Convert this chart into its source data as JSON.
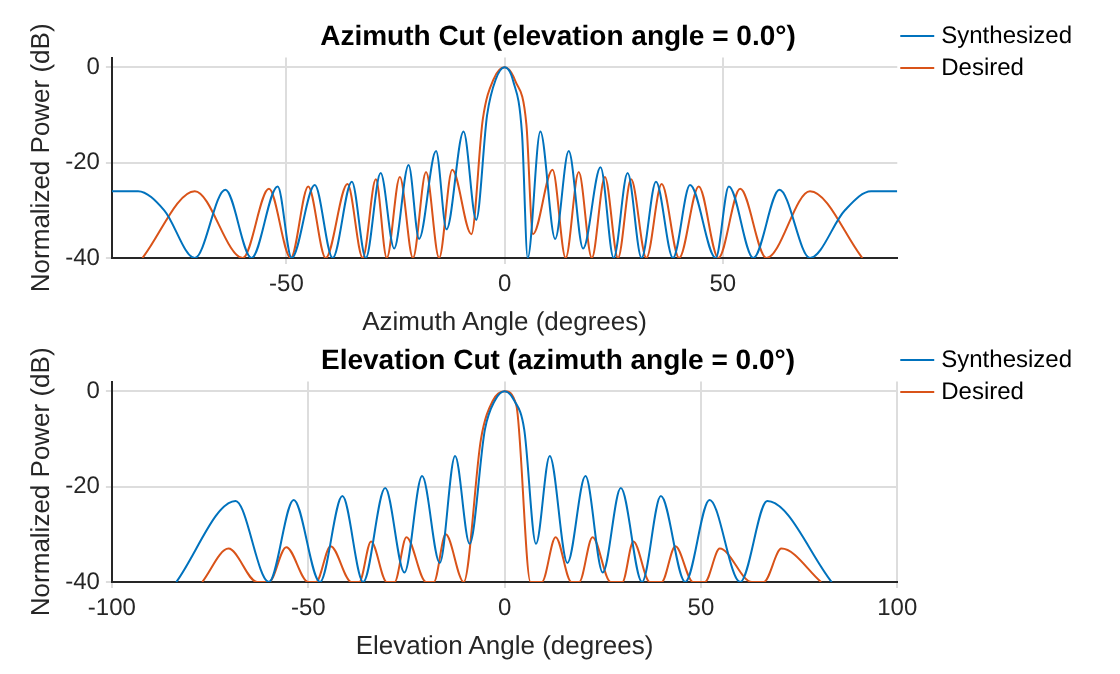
{
  "chart_data": [
    {
      "type": "line",
      "title": "Azimuth Cut (elevation angle = 0.0°)",
      "xlabel": "Azimuth Angle (degrees)",
      "ylabel": "Normalized Power (dB)",
      "xlim": [
        -90,
        90
      ],
      "xticks": [
        -50,
        0,
        50
      ],
      "ylim": [
        -40,
        2
      ],
      "yticks": [
        -40,
        -20,
        0
      ],
      "grid": true,
      "legend": "top right",
      "series": [
        {
          "name": "Synthesized",
          "color": "#0072bd",
          "x": [
            -90,
            -84,
            -78,
            -71,
            -64,
            -58,
            -52,
            -48.8,
            -43.5,
            -39.4,
            -35,
            -31.8,
            -28.4,
            -25.3,
            -22,
            -19.6,
            -15.7,
            -13.3,
            -9.4,
            -6.5,
            -4,
            -2,
            0,
            2,
            4,
            5.3,
            8.2,
            11.6,
            14.7,
            18,
            22,
            25,
            28.2,
            31.4,
            34.7,
            38.6,
            42.5,
            48.4,
            51.4,
            57,
            63,
            70,
            78,
            84,
            90
          ],
          "values": [
            -26,
            -26,
            -30,
            -40,
            -25.7,
            -40,
            -25,
            -40,
            -24.7,
            -40,
            -24,
            -40,
            -22.2,
            -38,
            -20.5,
            -36,
            -17.6,
            -34,
            -13.5,
            -32,
            -10,
            -2.5,
            0,
            -3,
            -14,
            -40,
            -13.5,
            -36,
            -17.6,
            -38,
            -21,
            -40,
            -22.2,
            -40,
            -24,
            -40,
            -24.7,
            -40,
            -25,
            -40,
            -25.7,
            -40,
            -30,
            -26,
            -26
          ]
        },
        {
          "name": "Desired",
          "color": "#d95319",
          "x": [
            -83,
            -71,
            -60,
            -54,
            -49,
            -45,
            -41,
            -36,
            -32.5,
            -29.5,
            -27,
            -24,
            -21,
            -18,
            -15,
            -12,
            -7.6,
            -5,
            -2.5,
            0,
            2.5,
            5,
            6.5,
            11,
            14,
            17,
            20,
            23,
            26,
            29,
            32.5,
            36,
            40,
            44.5,
            49,
            54,
            60,
            70,
            82
          ],
          "values": [
            -40,
            -26,
            -40,
            -25.5,
            -40,
            -25,
            -40,
            -24.5,
            -40,
            -23.5,
            -40,
            -23,
            -40,
            -22,
            -40,
            -21.5,
            -35,
            -11,
            -2.5,
            0,
            -3,
            -12,
            -35,
            -21.5,
            -40,
            -22,
            -40,
            -23,
            -40,
            -23.5,
            -40,
            -24.5,
            -40,
            -25,
            -40,
            -25.5,
            -40,
            -26,
            -40
          ]
        }
      ]
    },
    {
      "type": "line",
      "title": "Elevation Cut (azimuth angle = 0.0°)",
      "xlabel": "Elevation Angle (degrees)",
      "ylabel": "Normalized Power (dB)",
      "xlim": [
        -100,
        100
      ],
      "xticks": [
        -100,
        -50,
        0,
        50,
        100
      ],
      "ylim": [
        -40,
        2
      ],
      "yticks": [
        -40,
        -20,
        0
      ],
      "grid": true,
      "legend": "top right",
      "series": [
        {
          "name": "Synthesized",
          "color": "#0072bd",
          "x": [
            -83.6,
            -68.5,
            -60,
            -53.7,
            -47,
            -41.3,
            -36,
            -30.4,
            -25.5,
            -21,
            -16.5,
            -12.6,
            -8.9,
            -5,
            -2.5,
            0,
            2.5,
            5,
            8,
            11.5,
            16,
            20.6,
            25,
            29.6,
            35,
            39.8,
            46,
            52.2,
            60,
            66.9,
            83.3
          ],
          "values": [
            -40,
            -23,
            -40,
            -22.8,
            -40,
            -22,
            -40,
            -20.3,
            -38,
            -17.8,
            -36,
            -13.6,
            -32,
            -8,
            -2,
            0,
            -2,
            -8,
            -32,
            -13.6,
            -36,
            -17.8,
            -38,
            -20.3,
            -40,
            -22,
            -40,
            -22.8,
            -40,
            -23,
            -40
          ]
        },
        {
          "name": "Desired",
          "color": "#d95319",
          "x": [
            -77,
            -70.3,
            -63,
            -60,
            -55.6,
            -50,
            -48,
            -44.3,
            -39,
            -37,
            -34,
            -30,
            -28,
            -25,
            -20,
            -18,
            -15,
            -10.4,
            -6,
            -3,
            0,
            3,
            6.6,
            9.5,
            13,
            17,
            19,
            22.4,
            27,
            30,
            32.8,
            37,
            40,
            43.5,
            48,
            51,
            54.8,
            63,
            66,
            70.5,
            80.6
          ],
          "values": [
            -40,
            -33,
            -40,
            -40,
            -32.7,
            -40,
            -40,
            -32.5,
            -40,
            -40,
            -31.5,
            -40,
            -40,
            -30.6,
            -40,
            -40,
            -30,
            -40,
            -10,
            -2,
            0,
            -3,
            -40,
            -40,
            -30.6,
            -40,
            -40,
            -30.6,
            -40,
            -40,
            -31.5,
            -40,
            -40,
            -32.5,
            -40,
            -40,
            -33,
            -40,
            -40,
            -33,
            -40
          ]
        }
      ]
    }
  ]
}
